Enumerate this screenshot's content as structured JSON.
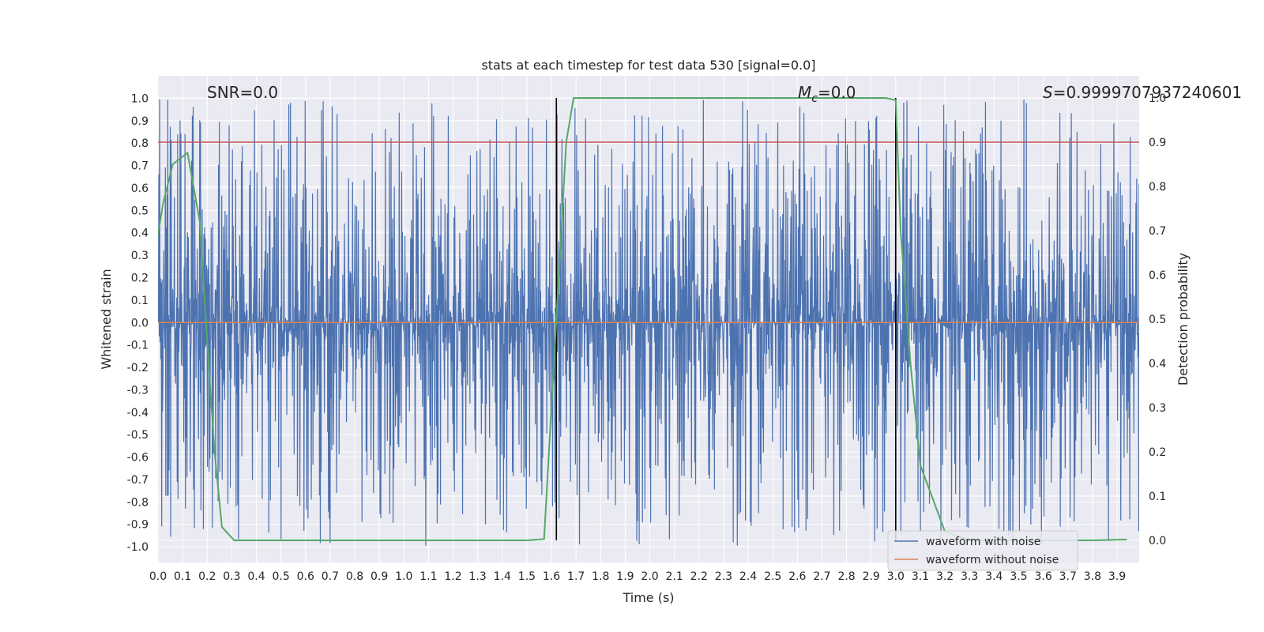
{
  "chart_data": {
    "type": "line",
    "title": "stats at each timestep for test data 530 [signal=0.0]",
    "xlabel": "Time (s)",
    "ylabel": "Whitened strain",
    "y2label": "Detection probability",
    "xlim": [
      0.0,
      3.99
    ],
    "ylim": [
      -1.07,
      1.1
    ],
    "y2lim": [
      -0.05,
      1.05
    ],
    "x_ticks": [
      "0.0",
      "0.1",
      "0.2",
      "0.3",
      "0.4",
      "0.5",
      "0.6",
      "0.7",
      "0.8",
      "0.9",
      "1.0",
      "1.1",
      "1.2",
      "1.3",
      "1.4",
      "1.5",
      "1.6",
      "1.7",
      "1.8",
      "1.9",
      "2.0",
      "2.1",
      "2.2",
      "2.3",
      "2.4",
      "2.5",
      "2.6",
      "2.7",
      "2.8",
      "2.9",
      "3.0",
      "3.1",
      "3.2",
      "3.3",
      "3.4",
      "3.5",
      "3.6",
      "3.7",
      "3.8",
      "3.9"
    ],
    "y_ticks": [
      "1.0",
      "0.9",
      "0.8",
      "0.7",
      "0.6",
      "0.5",
      "0.4",
      "0.3",
      "0.2",
      "0.1",
      "0.0",
      "-0.1",
      "-0.2",
      "-0.3",
      "-0.4",
      "-0.5",
      "-0.6",
      "-0.7",
      "-0.8",
      "-0.9",
      "-1.0"
    ],
    "y2_ticks": [
      "1.0",
      "0.9",
      "0.8",
      "0.7",
      "0.6",
      "0.5",
      "0.4",
      "0.3",
      "0.2",
      "0.1",
      "0.0"
    ],
    "grid": true,
    "legend_position": "lower-right",
    "annotations": {
      "snr": "SNR=0.0",
      "mc_symbol": "M",
      "mc_sub": "c",
      "mc_value": "=0.0",
      "s_symbol": "S",
      "s_value": "=0.9999707937240601"
    },
    "threshold": {
      "y2": 0.9,
      "color": "#c44e52"
    },
    "vlines_x": [
      1.62,
      3.0
    ],
    "series": [
      {
        "name": "waveform with noise",
        "color": "#4c72b0",
        "kind": "noise-trace",
        "sample_rate_hz": 2048,
        "amplitude_max_abs": 1.0
      },
      {
        "name": "waveform without noise",
        "color": "#dd8452",
        "kind": "flat",
        "y": 0.0
      },
      {
        "name": "",
        "color": "#55a868",
        "axis": "right",
        "x": [
          0.0,
          0.02,
          0.06,
          0.12,
          0.17,
          0.2,
          0.23,
          0.26,
          0.31,
          0.4,
          0.6,
          0.8,
          1.0,
          1.2,
          1.4,
          1.5,
          1.57,
          1.62,
          1.66,
          1.69,
          1.8,
          2.0,
          2.2,
          2.4,
          2.6,
          2.8,
          2.96,
          3.0,
          3.02,
          3.06,
          3.1,
          3.2,
          3.3,
          3.5,
          3.7,
          3.8,
          3.94
        ],
        "y": [
          0.69,
          0.76,
          0.85,
          0.876,
          0.72,
          0.45,
          0.2,
          0.03,
          0.0,
          0.0,
          0.0,
          0.0,
          0.0,
          0.0,
          0.0,
          0.0,
          0.003,
          0.5,
          0.9,
          1.0,
          1.0,
          1.0,
          1.0,
          1.0,
          1.0,
          1.0,
          1.0,
          0.995,
          0.7,
          0.4,
          0.17,
          0.02,
          0.0,
          0.0,
          0.0,
          0.0,
          0.002
        ]
      }
    ]
  }
}
